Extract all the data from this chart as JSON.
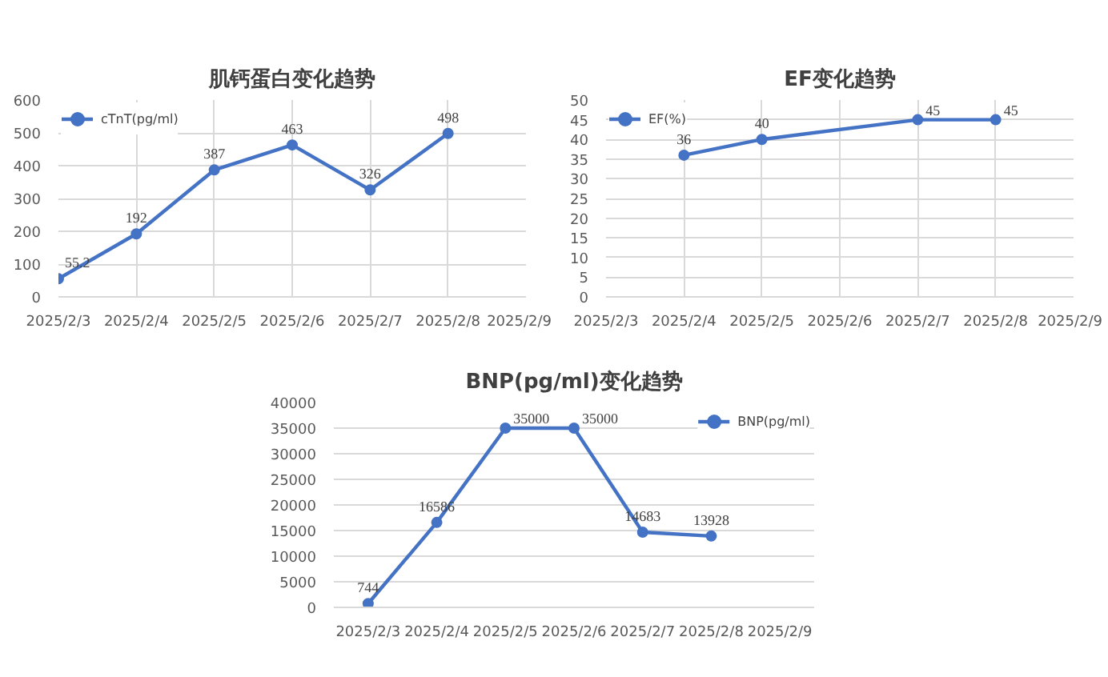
{
  "chart_data": [
    {
      "type": "line",
      "title": "肌钙蛋白变化趋势",
      "x": [
        "2025-02-03",
        "2025-02-04",
        "2025-02-05",
        "2025-02-06",
        "2025-02-07",
        "2025-02-08"
      ],
      "series": [
        {
          "name": "cTnT(pg/ml)",
          "color": "#4472c4",
          "values": [
            55.2,
            192,
            387,
            463,
            326,
            498
          ]
        }
      ],
      "xlim": [
        "2025-02-03",
        "2025-02-09"
      ],
      "xticks": [
        {
          "value": "2025-02-03",
          "label": "2025/2/3"
        },
        {
          "value": "2025-02-04",
          "label": "2025/2/4"
        },
        {
          "value": "2025-02-05",
          "label": "2025/2/5"
        },
        {
          "value": "2025-02-06",
          "label": "2025/2/6"
        },
        {
          "value": "2025-02-07",
          "label": "2025/2/7"
        },
        {
          "value": "2025-02-08",
          "label": "2025/2/8"
        },
        {
          "value": "2025-02-09",
          "label": "2025/2/9"
        }
      ],
      "ylim": [
        0,
        600
      ],
      "yticks": [
        0,
        100,
        200,
        300,
        400,
        500,
        600
      ],
      "grid": true,
      "legend": "top left",
      "marker": "circle",
      "line_style": "solid",
      "data_labels": true
    },
    {
      "type": "line",
      "title": "EF变化趋势",
      "x": [
        "2025-02-04",
        "2025-02-05",
        "2025-02-07",
        "2025-02-08"
      ],
      "series": [
        {
          "name": "EF(%)",
          "color": "#4472c4",
          "values": [
            36,
            40,
            45,
            45
          ]
        }
      ],
      "xlim": [
        "2025-02-03",
        "2025-02-09"
      ],
      "xticks": [
        {
          "value": "2025-02-03",
          "label": "2025/2/3"
        },
        {
          "value": "2025-02-04",
          "label": "2025/2/4"
        },
        {
          "value": "2025-02-05",
          "label": "2025/2/5"
        },
        {
          "value": "2025-02-06",
          "label": "2025/2/6"
        },
        {
          "value": "2025-02-07",
          "label": "2025/2/7"
        },
        {
          "value": "2025-02-08",
          "label": "2025/2/8"
        },
        {
          "value": "2025-02-09",
          "label": "2025/2/9"
        }
      ],
      "ylim": [
        0,
        50
      ],
      "yticks": [
        0,
        5,
        10,
        15,
        20,
        25,
        30,
        35,
        40,
        45,
        50
      ],
      "grid": true,
      "legend": "top left",
      "marker": "circle",
      "line_style": "solid",
      "data_labels": true
    },
    {
      "type": "line",
      "title": "BNP(pg/ml)变化趋势",
      "categories": [
        "2025/2/3",
        "2025/2/4",
        "2025/2/5",
        "2025/2/6",
        "2025/2/7",
        "2025/2/8",
        "2025/2/9"
      ],
      "series": [
        {
          "name": "BNP(pg/ml)",
          "color": "#4472c4",
          "values": [
            744,
            16586,
            35000,
            35000,
            14683,
            13928,
            null
          ]
        }
      ],
      "ylim": [
        0,
        40000
      ],
      "yticks": [
        0,
        5000,
        10000,
        15000,
        20000,
        25000,
        30000,
        35000,
        40000
      ],
      "grid": "y",
      "legend": "top right",
      "marker": "circle",
      "line_style": "solid",
      "data_labels": true
    }
  ]
}
